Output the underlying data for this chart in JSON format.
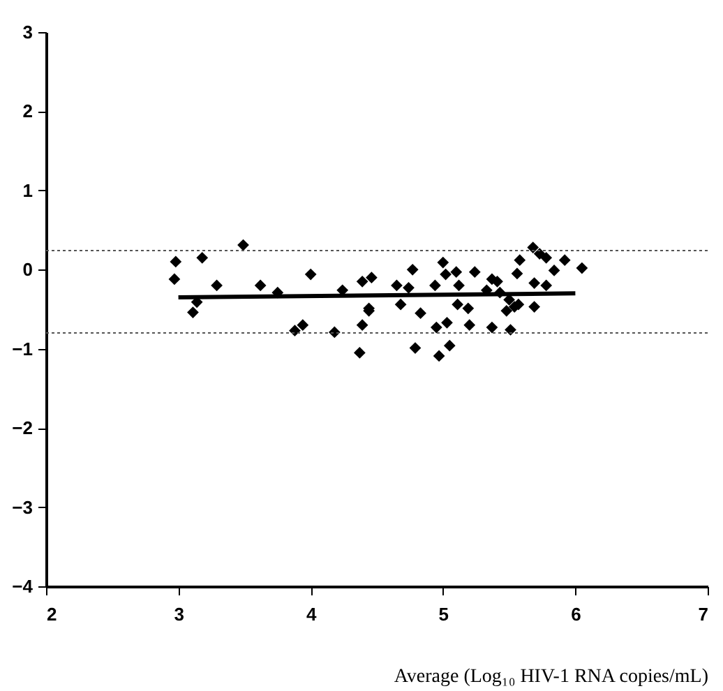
{
  "chart_data": {
    "type": "scatter",
    "xlabel": "Average (Log₁₀ HIV-1 RNA copies/mL)",
    "xlim": [
      2,
      7
    ],
    "xticks": [
      2,
      3,
      4,
      5,
      6,
      7
    ],
    "ylim": [
      -4,
      3
    ],
    "yticks": [
      -4,
      -3,
      -2,
      -1,
      0,
      1,
      2,
      3
    ],
    "grid": false,
    "marker": "diamond",
    "series": [
      {
        "color": "#000000",
        "x": [
          2.98,
          2.97,
          3.18,
          3.49,
          3.29,
          3.14,
          3.11,
          3.62,
          3.75,
          4.0,
          4.24,
          4.39,
          3.88,
          3.94,
          4.18,
          4.39,
          4.37,
          4.44,
          4.46,
          4.44,
          4.77,
          4.65,
          4.74,
          4.68,
          4.83,
          4.79,
          5.0,
          4.94,
          5.02,
          5.1,
          5.12,
          5.03,
          4.95,
          5.05,
          4.97,
          5.11,
          5.19,
          5.2,
          5.24,
          5.37,
          5.41,
          5.33,
          5.37,
          5.43,
          5.5,
          5.48,
          5.54,
          5.57,
          5.51,
          5.58,
          5.56,
          5.68,
          5.73,
          5.78,
          5.69,
          5.78,
          5.69,
          5.84,
          5.92,
          6.05
        ],
        "values": [
          0.1,
          -0.12,
          0.15,
          0.31,
          -0.2,
          -0.41,
          -0.54,
          -0.2,
          -0.29,
          -0.06,
          -0.26,
          -0.15,
          -0.77,
          -0.7,
          -0.79,
          -0.7,
          -1.05,
          -0.52,
          -0.1,
          -0.49,
          0.0,
          -0.2,
          -0.23,
          -0.44,
          -0.55,
          -0.99,
          0.09,
          -0.2,
          -0.06,
          -0.03,
          -0.2,
          -0.67,
          -0.73,
          -0.96,
          -1.09,
          -0.44,
          -0.49,
          -0.7,
          -0.03,
          -0.12,
          -0.15,
          -0.26,
          -0.73,
          -0.29,
          -0.38,
          -0.52,
          -0.47,
          -0.44,
          -0.76,
          0.12,
          -0.05,
          0.28,
          0.2,
          0.15,
          -0.17,
          -0.2,
          -0.47,
          -0.01,
          0.12,
          0.02
        ]
      },
      {
        "type": "line",
        "marker": "none",
        "color": "#000000",
        "x": [
          3,
          6
        ],
        "values": [
          -0.35,
          -0.3
        ]
      }
    ],
    "ref_lines": [
      {
        "axis": "y",
        "value": 0.24,
        "line_style": "dotted",
        "color": "#555555"
      },
      {
        "axis": "y",
        "value": -0.8,
        "line_style": "dotted",
        "color": "#555555"
      }
    ]
  }
}
